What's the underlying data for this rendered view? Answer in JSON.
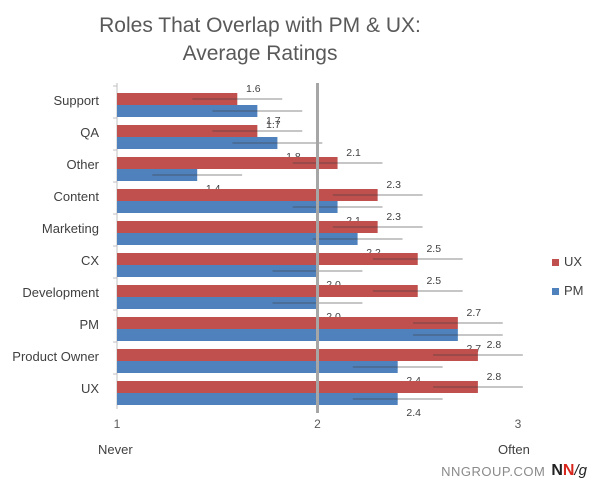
{
  "title_line1": "Roles That Overlap with PM & UX:",
  "title_line2": "Average Ratings",
  "anchor_left": "Never",
  "anchor_right": "Often",
  "footer_text": "NNGROUP.COM",
  "logo": {
    "n1": "N",
    "n2": "N",
    "g": "/g"
  },
  "colors": {
    "ux": "#c0504d",
    "pm": "#4f81bd",
    "reference_line": "#a6a6a6"
  },
  "chart_data": {
    "type": "bar",
    "orientation": "horizontal",
    "categories": [
      "Support",
      "QA",
      "Other",
      "Content",
      "Marketing",
      "CX",
      "Development",
      "PM",
      "Product Owner",
      "UX"
    ],
    "series": [
      {
        "name": "UX",
        "values": [
          1.6,
          1.7,
          2.1,
          2.3,
          2.3,
          2.5,
          2.5,
          2.7,
          2.8,
          2.8
        ]
      },
      {
        "name": "PM",
        "values": [
          1.7,
          1.8,
          1.4,
          2.1,
          2.2,
          2.0,
          2.0,
          2.7,
          2.4,
          2.4
        ]
      }
    ],
    "xlim": [
      1,
      3
    ],
    "xticks": [
      1,
      2,
      3
    ],
    "reference_line": 2,
    "legend": "right",
    "error_bars": true
  }
}
